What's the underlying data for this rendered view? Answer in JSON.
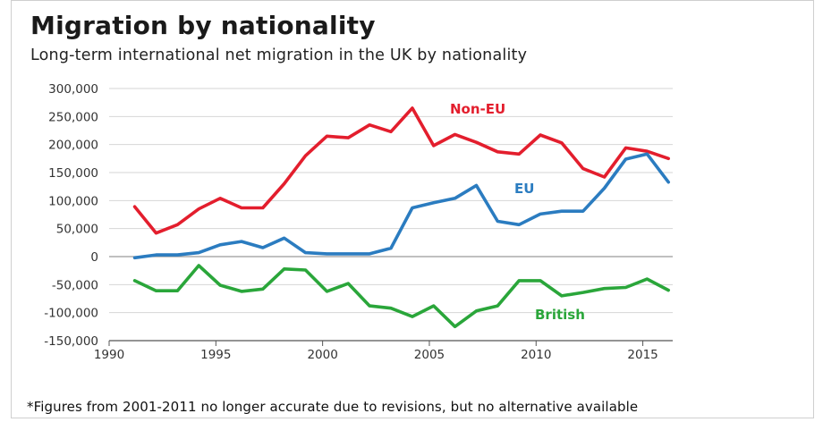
{
  "title": "Migration by nationality",
  "subtitle": "Long-term international net migration in the UK by nationality",
  "footnote": "*Figures from 2001-2011 no longer accurate due to revisions, but no alternative available",
  "chart_data": {
    "type": "line",
    "title": "Migration by nationality",
    "subtitle": "Long-term international net migration in the UK by nationality",
    "ylim": [
      -150000,
      300000
    ],
    "xlim": [
      1990,
      2016.4
    ],
    "yticks": [
      {
        "value": 300000,
        "label": "300,000"
      },
      {
        "value": 250000,
        "label": "250,000"
      },
      {
        "value": 200000,
        "label": "200,000"
      },
      {
        "value": 150000,
        "label": "150,000"
      },
      {
        "value": 100000,
        "label": "100,000"
      },
      {
        "value": 50000,
        "label": "50,000"
      },
      {
        "value": 0,
        "label": "0"
      },
      {
        "value": -50000,
        "label": "-50,000"
      },
      {
        "value": -100000,
        "label": "-100,000"
      },
      {
        "value": -150000,
        "label": "-150,000"
      }
    ],
    "xticks": [
      {
        "value": 1990,
        "label": "1990"
      },
      {
        "value": 1995,
        "label": "1995"
      },
      {
        "value": 2000,
        "label": "2000"
      },
      {
        "value": 2005,
        "label": "2005"
      },
      {
        "value": 2010,
        "label": "2010"
      },
      {
        "value": 2015,
        "label": "2015"
      }
    ],
    "grid": "horizontal",
    "series": [
      {
        "name": "Non-EU",
        "color": "#e31e2d",
        "points": [
          [
            1991.2,
            89000
          ],
          [
            1992.2,
            42000
          ],
          [
            1993.2,
            57000
          ],
          [
            1994.2,
            85000
          ],
          [
            1995.2,
            104000
          ],
          [
            1996.2,
            87000
          ],
          [
            1997.2,
            87000
          ],
          [
            1998.2,
            130000
          ],
          [
            1999.2,
            180000
          ],
          [
            2000.2,
            215000
          ],
          [
            2001.2,
            212000
          ],
          [
            2002.2,
            235000
          ],
          [
            2003.2,
            223000
          ],
          [
            2004.2,
            265000
          ],
          [
            2005.2,
            198000
          ],
          [
            2006.2,
            218000
          ],
          [
            2007.2,
            204000
          ],
          [
            2008.2,
            187000
          ],
          [
            2009.2,
            183000
          ],
          [
            2010.2,
            217000
          ],
          [
            2011.2,
            203000
          ],
          [
            2012.2,
            157000
          ],
          [
            2013.2,
            142000
          ],
          [
            2014.2,
            194000
          ],
          [
            2015.2,
            188000
          ],
          [
            2016.2,
            175000
          ]
        ]
      },
      {
        "name": "EU",
        "color": "#2b7cc0",
        "points": [
          [
            1991.2,
            -2000
          ],
          [
            1992.2,
            3000
          ],
          [
            1993.2,
            3000
          ],
          [
            1994.2,
            7000
          ],
          [
            1995.2,
            21000
          ],
          [
            1996.2,
            27000
          ],
          [
            1997.2,
            16000
          ],
          [
            1998.2,
            33000
          ],
          [
            1999.2,
            7000
          ],
          [
            2000.2,
            5000
          ],
          [
            2001.2,
            5000
          ],
          [
            2002.2,
            5000
          ],
          [
            2003.2,
            15000
          ],
          [
            2004.2,
            87000
          ],
          [
            2005.2,
            96000
          ],
          [
            2006.2,
            104000
          ],
          [
            2007.2,
            127000
          ],
          [
            2008.2,
            63000
          ],
          [
            2009.2,
            57000
          ],
          [
            2010.2,
            76000
          ],
          [
            2011.2,
            81000
          ],
          [
            2012.2,
            81000
          ],
          [
            2013.2,
            122000
          ],
          [
            2014.2,
            174000
          ],
          [
            2015.2,
            183000
          ],
          [
            2016.2,
            133000
          ]
        ]
      },
      {
        "name": "British",
        "color": "#2aa63a",
        "points": [
          [
            1991.2,
            -43000
          ],
          [
            1992.2,
            -61000
          ],
          [
            1993.2,
            -61000
          ],
          [
            1994.2,
            -16000
          ],
          [
            1995.2,
            -51000
          ],
          [
            1996.2,
            -62000
          ],
          [
            1997.2,
            -58000
          ],
          [
            1998.2,
            -22000
          ],
          [
            1999.2,
            -24000
          ],
          [
            2000.2,
            -62000
          ],
          [
            2001.2,
            -48000
          ],
          [
            2002.2,
            -88000
          ],
          [
            2003.2,
            -92000
          ],
          [
            2004.2,
            -107000
          ],
          [
            2005.2,
            -88000
          ],
          [
            2006.2,
            -125000
          ],
          [
            2007.2,
            -97000
          ],
          [
            2008.2,
            -88000
          ],
          [
            2009.2,
            -43000
          ],
          [
            2010.2,
            -43000
          ],
          [
            2011.2,
            -70000
          ],
          [
            2012.2,
            -64000
          ],
          [
            2013.2,
            -57000
          ],
          [
            2014.2,
            -55000
          ],
          [
            2015.2,
            -40000
          ],
          [
            2016.2,
            -60000
          ]
        ]
      }
    ]
  }
}
